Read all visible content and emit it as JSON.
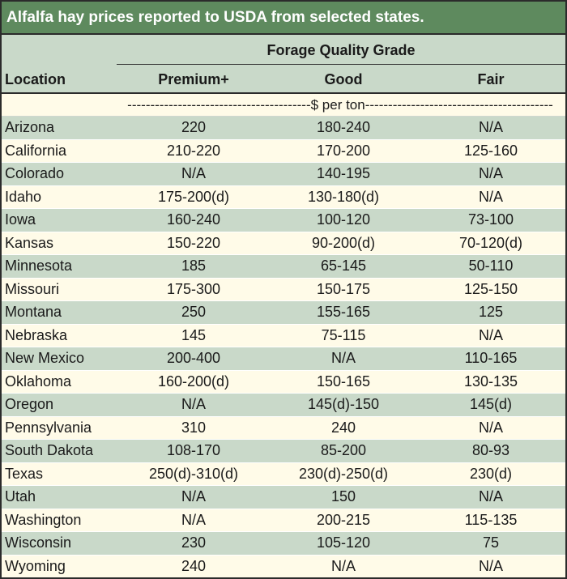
{
  "title": "Alfalfa hay prices reported to USDA from selected states.",
  "header": {
    "group_label": "Forage Quality Grade",
    "columns": [
      "Location",
      "Premium+",
      "Good",
      "Fair"
    ],
    "units": "----------------------------------------$ per ton-----------------------------------------"
  },
  "rows": [
    {
      "location": "Arizona",
      "premium": "220",
      "good": "180-240",
      "fair": "N/A"
    },
    {
      "location": "California",
      "premium": "210-220",
      "good": "170-200",
      "fair": "125-160"
    },
    {
      "location": "Colorado",
      "premium": "N/A",
      "good": "140-195",
      "fair": "N/A"
    },
    {
      "location": "Idaho",
      "premium": "175-200(d)",
      "good": "130-180(d)",
      "fair": "N/A"
    },
    {
      "location": "Iowa",
      "premium": "160-240",
      "good": "100-120",
      "fair": "73-100"
    },
    {
      "location": "Kansas",
      "premium": "150-220",
      "good": "90-200(d)",
      "fair": "70-120(d)"
    },
    {
      "location": "Minnesota",
      "premium": "185",
      "good": "65-145",
      "fair": "50-110"
    },
    {
      "location": "Missouri",
      "premium": "175-300",
      "good": "150-175",
      "fair": "125-150"
    },
    {
      "location": "Montana",
      "premium": "250",
      "good": "155-165",
      "fair": "125"
    },
    {
      "location": "Nebraska",
      "premium": "145",
      "good": "75-115",
      "fair": "N/A"
    },
    {
      "location": "New Mexico",
      "premium": "200-400",
      "good": "N/A",
      "fair": "110-165"
    },
    {
      "location": "Oklahoma",
      "premium": "160-200(d)",
      "good": "150-165",
      "fair": "130-135"
    },
    {
      "location": "Oregon",
      "premium": "N/A",
      "good": "145(d)-150",
      "fair": "145(d)"
    },
    {
      "location": "Pennsylvania",
      "premium": "310",
      "good": "240",
      "fair": "N/A"
    },
    {
      "location": "South Dakota",
      "premium": "108-170",
      "good": "85-200",
      "fair": "80-93"
    },
    {
      "location": "Texas",
      "premium": "250(d)-310(d)",
      "good": "230(d)-250(d)",
      "fair": "230(d)"
    },
    {
      "location": "Utah",
      "premium": "N/A",
      "good": "150",
      "fair": "N/A"
    },
    {
      "location": "Washington",
      "premium": "N/A",
      "good": "200-215",
      "fair": "115-135"
    },
    {
      "location": "Wisconsin",
      "premium": "230",
      "good": "105-120",
      "fair": "75"
    },
    {
      "location": "Wyoming",
      "premium": "240",
      "good": "N/A",
      "fair": "N/A"
    }
  ]
}
